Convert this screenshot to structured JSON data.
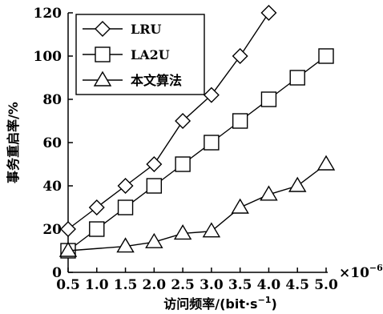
{
  "chart_data": {
    "type": "line",
    "xlabel": "访问频率/(bit·s",
    "xlabel_sup": "−1",
    "xlabel_close": ")",
    "ylabel": "事务重启率/%",
    "x_multiplier_base": "×10",
    "x_multiplier_exp": "−6",
    "x_ticks": [
      "0.5",
      "1.0",
      "1.5",
      "2.0",
      "2.5",
      "3.0",
      "3.5",
      "4.0",
      "4.5",
      "5.0"
    ],
    "y_ticks": [
      "0",
      "20",
      "40",
      "60",
      "80",
      "100",
      "120"
    ],
    "xlim": [
      0.5,
      5.0
    ],
    "ylim": [
      0,
      120
    ],
    "grid": false,
    "legend_position": "top-left",
    "series": [
      {
        "name": "LRU",
        "marker": "diamond",
        "x": [
          0.5,
          1.0,
          1.5,
          2.0,
          2.5,
          3.0,
          3.5,
          4.0
        ],
        "y": [
          20,
          30,
          40,
          50,
          70,
          82,
          100,
          120
        ]
      },
      {
        "name": "LA2U",
        "marker": "square",
        "x": [
          0.5,
          1.0,
          1.5,
          2.0,
          2.5,
          3.0,
          3.5,
          4.0,
          4.5,
          5.0
        ],
        "y": [
          10,
          20,
          30,
          40,
          50,
          60,
          70,
          80,
          90,
          100
        ]
      },
      {
        "name": "本文算法",
        "marker": "triangle",
        "x": [
          0.5,
          1.5,
          2.0,
          2.5,
          3.0,
          3.5,
          4.0,
          4.5,
          5.0
        ],
        "y": [
          10,
          12,
          14,
          18,
          19,
          30,
          36,
          40,
          50
        ]
      }
    ]
  }
}
